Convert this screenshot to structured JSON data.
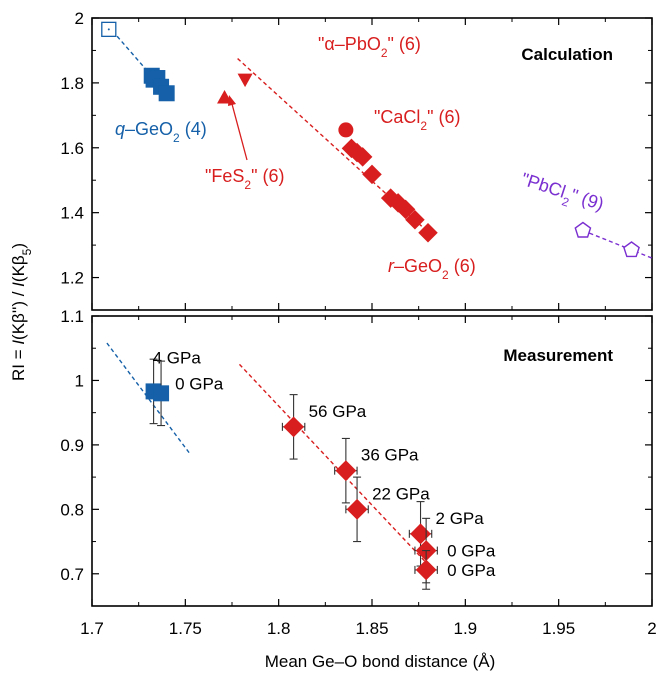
{
  "colors": {
    "blue": "#1560a8",
    "red": "#d81e1e",
    "purple": "#7a2fd0",
    "axis": "#000000",
    "errorbar": "#333333"
  },
  "chart_data": [
    {
      "panel": "top",
      "type": "scatter",
      "title": "Calculation",
      "xlabel": "Mean Ge–O bond distance  (Å)",
      "ylabel": "RI = I(Kβ'') / I(Kβ5)",
      "xlim": [
        1.7,
        2.0
      ],
      "ylim": [
        1.1,
        2.0
      ],
      "yticks": [
        "2",
        "1.8",
        "1.6",
        "1.4",
        "1.2"
      ],
      "series": [
        {
          "name": "q–GeO2 (4)",
          "color": "blue",
          "marker": "square",
          "points": [
            [
              1.709,
              1.965
            ],
            [
              1.732,
              1.822
            ],
            [
              1.733,
              1.81
            ],
            [
              1.735,
              1.815
            ],
            [
              1.737,
              1.788
            ],
            [
              1.74,
              1.768
            ]
          ],
          "fit": [
            [
              1.711,
              1.96
            ],
            [
              1.742,
              1.755
            ]
          ]
        },
        {
          "name": "\"FeS2\" (6)",
          "color": "red",
          "marker": "triangle-up",
          "points": [
            [
              1.771,
              1.755
            ]
          ]
        },
        {
          "name": "\"α–PbO2\" (6)",
          "color": "red",
          "marker": "triangle-down",
          "points": [
            [
              1.782,
              1.81
            ]
          ]
        },
        {
          "name": "\"CaCl2\" (6)",
          "color": "red",
          "marker": "circle",
          "points": [
            [
              1.836,
              1.655
            ]
          ]
        },
        {
          "name": "r–GeO2 (6)",
          "color": "red",
          "marker": "diamond",
          "points": [
            [
              1.839,
              1.598
            ],
            [
              1.842,
              1.585
            ],
            [
              1.845,
              1.572
            ],
            [
              1.85,
              1.518
            ],
            [
              1.86,
              1.445
            ],
            [
              1.864,
              1.43
            ],
            [
              1.868,
              1.41
            ],
            [
              1.873,
              1.378
            ],
            [
              1.88,
              1.338
            ]
          ],
          "fit": [
            [
              1.778,
              1.875
            ],
            [
              1.882,
              1.33
            ]
          ]
        },
        {
          "name": "\"PbCl2\" (9)",
          "color": "purple",
          "marker": "pentagon-open",
          "points": [
            [
              1.963,
              1.345
            ],
            [
              1.989,
              1.285
            ]
          ],
          "fit": [
            [
              1.963,
              1.345
            ],
            [
              2.0,
              1.26
            ]
          ]
        }
      ],
      "annotations": [
        {
          "text_parts": [
            "\"α–PbO",
            "2",
            "\" (6)"
          ],
          "color": "red"
        },
        {
          "text_parts": [
            "\"CaCl",
            "2",
            "\" (6)"
          ],
          "color": "red"
        },
        {
          "text_parts": [
            "\"FeS",
            "2",
            "\" (6)"
          ],
          "color": "red"
        },
        {
          "text_parts": [
            "\"PbCl",
            "2",
            "\" (9)"
          ],
          "color": "purple"
        },
        {
          "text_parts": [
            "q",
            "–GeO",
            "2",
            " (4)"
          ],
          "color": "blue"
        },
        {
          "text_parts": [
            "r",
            "–GeO",
            "2",
            " (6)"
          ],
          "color": "red"
        }
      ]
    },
    {
      "panel": "bottom",
      "type": "scatter",
      "title": "Measurement",
      "xlim": [
        1.7,
        2.0
      ],
      "ylim": [
        0.65,
        1.1
      ],
      "xticks": [
        "1.7",
        "1.75",
        "1.8",
        "1.85",
        "1.9",
        "1.95",
        "2"
      ],
      "yticks": [
        "1.1",
        "1",
        "0.9",
        "0.8",
        "0.7"
      ],
      "series": [
        {
          "name": "q–GeO2",
          "color": "blue",
          "marker": "square",
          "points": [
            {
              "x": 1.733,
              "y": 0.983,
              "yerr": 0.05,
              "label": "4 GPa"
            },
            {
              "x": 1.737,
              "y": 0.98,
              "yerr": 0.05,
              "label": "0 GPa"
            }
          ],
          "fit": [
            [
              1.708,
              1.058
            ],
            [
              1.752,
              0.888
            ]
          ]
        },
        {
          "name": "r–GeO2",
          "color": "red",
          "marker": "diamond",
          "points": [
            {
              "x": 1.808,
              "y": 0.928,
              "xerr": 0.006,
              "yerr": 0.05,
              "label": "56 GPa"
            },
            {
              "x": 1.836,
              "y": 0.86,
              "xerr": 0.006,
              "yerr": 0.05,
              "label": "36 GPa"
            },
            {
              "x": 1.842,
              "y": 0.8,
              "xerr": 0.006,
              "yerr": 0.05,
              "label": "22 GPa"
            },
            {
              "x": 1.876,
              "y": 0.762,
              "xerr": 0.006,
              "yerr": 0.05,
              "label": "2 GPa"
            },
            {
              "x": 1.879,
              "y": 0.736,
              "xerr": 0.006,
              "yerr": 0.05,
              "label": "0 GPa"
            },
            {
              "x": 1.879,
              "y": 0.706,
              "xerr": 0.006,
              "yerr": 0.03,
              "label": "0 GPa"
            }
          ],
          "fit": [
            [
              1.779,
              1.025
            ],
            [
              1.883,
              0.705
            ]
          ]
        }
      ]
    }
  ]
}
